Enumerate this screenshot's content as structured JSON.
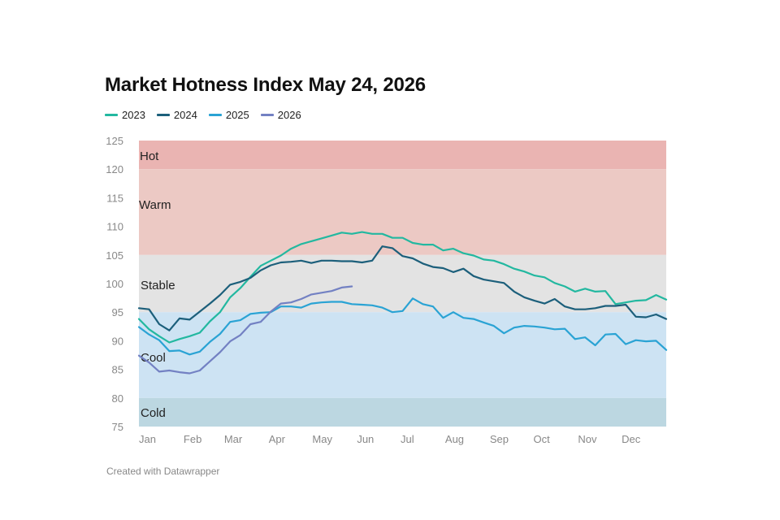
{
  "title": "Market Hotness Index May 24, 2026",
  "credit": "Created with Datawrapper",
  "chart_data": {
    "type": "line",
    "title": "Market Hotness Index May 24, 2026",
    "xlabel": "",
    "ylabel": "",
    "ylim": [
      75,
      125
    ],
    "xlim": [
      0,
      52
    ],
    "grid": false,
    "legend_position": "top-left",
    "y_ticks": [
      125,
      120,
      115,
      110,
      105,
      100,
      95,
      90,
      85,
      80,
      75
    ],
    "x_ticks": [
      {
        "label": "Jan",
        "x": 0
      },
      {
        "label": "Feb",
        "x": 4.4
      },
      {
        "label": "Mar",
        "x": 8.4
      },
      {
        "label": "Apr",
        "x": 12.8
      },
      {
        "label": "May",
        "x": 17.1
      },
      {
        "label": "Jun",
        "x": 21.5
      },
      {
        "label": "Jul",
        "x": 25.8
      },
      {
        "label": "Aug",
        "x": 30.2
      },
      {
        "label": "Sep",
        "x": 34.6
      },
      {
        "label": "Oct",
        "x": 38.9
      },
      {
        "label": "Nov",
        "x": 43.3
      },
      {
        "label": "Dec",
        "x": 47.6
      }
    ],
    "bands": [
      {
        "label": "Hot",
        "from": 120,
        "to": 125,
        "color": "#eab4b2"
      },
      {
        "label": "Warm",
        "from": 105,
        "to": 120,
        "color": "#ecc9c4"
      },
      {
        "label": "Stable",
        "from": 95,
        "to": 105,
        "color": "#e3e3e3"
      },
      {
        "label": "Cool",
        "from": 80,
        "to": 95,
        "color": "#cde3f3"
      },
      {
        "label": "Cold",
        "from": 75,
        "to": 80,
        "color": "#bcd7e1"
      }
    ],
    "series": [
      {
        "name": "2023",
        "color": "#23b8a0",
        "points": [
          [
            0,
            93.8
          ],
          [
            1,
            92.0
          ],
          [
            2,
            90.8
          ],
          [
            3,
            89.7
          ],
          [
            4,
            90.3
          ],
          [
            5,
            90.8
          ],
          [
            6,
            91.4
          ],
          [
            7,
            93.4
          ],
          [
            8,
            95.0
          ],
          [
            9,
            97.6
          ],
          [
            10,
            99.2
          ],
          [
            11,
            101.2
          ],
          [
            12,
            103.1
          ],
          [
            13,
            104.0
          ],
          [
            14,
            104.9
          ],
          [
            15,
            106.1
          ],
          [
            16,
            106.9
          ],
          [
            17,
            107.4
          ],
          [
            18,
            107.9
          ],
          [
            19,
            108.4
          ],
          [
            20,
            108.9
          ],
          [
            21,
            108.7
          ],
          [
            22,
            109.0
          ],
          [
            23,
            108.7
          ],
          [
            24,
            108.7
          ],
          [
            25,
            108.0
          ],
          [
            26,
            108.0
          ],
          [
            27,
            107.1
          ],
          [
            28,
            106.8
          ],
          [
            29,
            106.8
          ],
          [
            30,
            105.8
          ],
          [
            31,
            106.1
          ],
          [
            32,
            105.3
          ],
          [
            33,
            104.9
          ],
          [
            34,
            104.2
          ],
          [
            35,
            104.0
          ],
          [
            36,
            103.4
          ],
          [
            37,
            102.6
          ],
          [
            38,
            102.1
          ],
          [
            39,
            101.4
          ],
          [
            40,
            101.1
          ],
          [
            41,
            100.1
          ],
          [
            42,
            99.5
          ],
          [
            43,
            98.6
          ],
          [
            44,
            99.1
          ],
          [
            45,
            98.6
          ],
          [
            46,
            98.7
          ],
          [
            47,
            96.4
          ],
          [
            48,
            96.7
          ],
          [
            49,
            97.0
          ],
          [
            50,
            97.1
          ],
          [
            51,
            98.0
          ],
          [
            52,
            97.2
          ]
        ]
      },
      {
        "name": "2024",
        "color": "#1c5f7b",
        "points": [
          [
            0,
            95.7
          ],
          [
            1,
            95.5
          ],
          [
            2,
            92.9
          ],
          [
            3,
            91.8
          ],
          [
            4,
            93.9
          ],
          [
            5,
            93.7
          ],
          [
            6,
            95.1
          ],
          [
            7,
            96.5
          ],
          [
            8,
            98.0
          ],
          [
            9,
            99.8
          ],
          [
            10,
            100.3
          ],
          [
            11,
            101.0
          ],
          [
            12,
            102.3
          ],
          [
            13,
            103.2
          ],
          [
            14,
            103.7
          ],
          [
            15,
            103.8
          ],
          [
            16,
            104.0
          ],
          [
            17,
            103.6
          ],
          [
            18,
            104.0
          ],
          [
            19,
            104.0
          ],
          [
            20,
            103.9
          ],
          [
            21,
            103.9
          ],
          [
            22,
            103.7
          ],
          [
            23,
            104.0
          ],
          [
            24,
            106.5
          ],
          [
            25,
            106.2
          ],
          [
            26,
            104.8
          ],
          [
            27,
            104.4
          ],
          [
            28,
            103.5
          ],
          [
            29,
            102.9
          ],
          [
            30,
            102.7
          ],
          [
            31,
            102.0
          ],
          [
            32,
            102.6
          ],
          [
            33,
            101.3
          ],
          [
            34,
            100.7
          ],
          [
            35,
            100.4
          ],
          [
            36,
            100.1
          ],
          [
            37,
            98.6
          ],
          [
            38,
            97.6
          ],
          [
            39,
            97.0
          ],
          [
            40,
            96.5
          ],
          [
            41,
            97.3
          ],
          [
            42,
            96.0
          ],
          [
            43,
            95.5
          ],
          [
            44,
            95.5
          ],
          [
            45,
            95.7
          ],
          [
            46,
            96.1
          ],
          [
            47,
            96.1
          ],
          [
            48,
            96.3
          ],
          [
            49,
            94.2
          ],
          [
            50,
            94.1
          ],
          [
            51,
            94.6
          ],
          [
            52,
            93.8
          ]
        ]
      },
      {
        "name": "2025",
        "color": "#2aa3d4",
        "points": [
          [
            0,
            92.4
          ],
          [
            1,
            91.1
          ],
          [
            2,
            90.1
          ],
          [
            3,
            88.2
          ],
          [
            4,
            88.3
          ],
          [
            5,
            87.6
          ],
          [
            6,
            88.1
          ],
          [
            7,
            89.8
          ],
          [
            8,
            91.2
          ],
          [
            9,
            93.3
          ],
          [
            10,
            93.6
          ],
          [
            11,
            94.7
          ],
          [
            12,
            94.9
          ],
          [
            13,
            95.0
          ],
          [
            14,
            96.0
          ],
          [
            15,
            96.0
          ],
          [
            16,
            95.8
          ],
          [
            17,
            96.5
          ],
          [
            18,
            96.7
          ],
          [
            19,
            96.8
          ],
          [
            20,
            96.8
          ],
          [
            21,
            96.4
          ],
          [
            22,
            96.3
          ],
          [
            23,
            96.2
          ],
          [
            24,
            95.8
          ],
          [
            25,
            95.0
          ],
          [
            26,
            95.2
          ],
          [
            27,
            97.4
          ],
          [
            28,
            96.4
          ],
          [
            29,
            96.0
          ],
          [
            30,
            94.0
          ],
          [
            31,
            95.0
          ],
          [
            32,
            94.0
          ],
          [
            33,
            93.8
          ],
          [
            34,
            93.2
          ],
          [
            35,
            92.6
          ],
          [
            36,
            91.3
          ],
          [
            37,
            92.3
          ],
          [
            38,
            92.6
          ],
          [
            39,
            92.5
          ],
          [
            40,
            92.3
          ],
          [
            41,
            92.0
          ],
          [
            42,
            92.1
          ],
          [
            43,
            90.3
          ],
          [
            44,
            90.6
          ],
          [
            45,
            89.2
          ],
          [
            46,
            91.1
          ],
          [
            47,
            91.2
          ],
          [
            48,
            89.4
          ],
          [
            49,
            90.1
          ],
          [
            50,
            89.9
          ],
          [
            51,
            90.0
          ],
          [
            52,
            88.4
          ]
        ]
      },
      {
        "name": "2026",
        "color": "#7381c3",
        "points": [
          [
            0,
            87.4
          ],
          [
            1,
            86.2
          ],
          [
            2,
            84.6
          ],
          [
            3,
            84.8
          ],
          [
            4,
            84.5
          ],
          [
            5,
            84.3
          ],
          [
            6,
            84.8
          ],
          [
            7,
            86.4
          ],
          [
            8,
            88.0
          ],
          [
            9,
            89.9
          ],
          [
            10,
            91.0
          ],
          [
            11,
            92.9
          ],
          [
            12,
            93.3
          ],
          [
            13,
            95.1
          ],
          [
            14,
            96.5
          ],
          [
            15,
            96.7
          ],
          [
            16,
            97.3
          ],
          [
            17,
            98.1
          ],
          [
            18,
            98.4
          ],
          [
            19,
            98.7
          ],
          [
            20,
            99.3
          ],
          [
            21,
            99.5
          ]
        ]
      }
    ]
  }
}
